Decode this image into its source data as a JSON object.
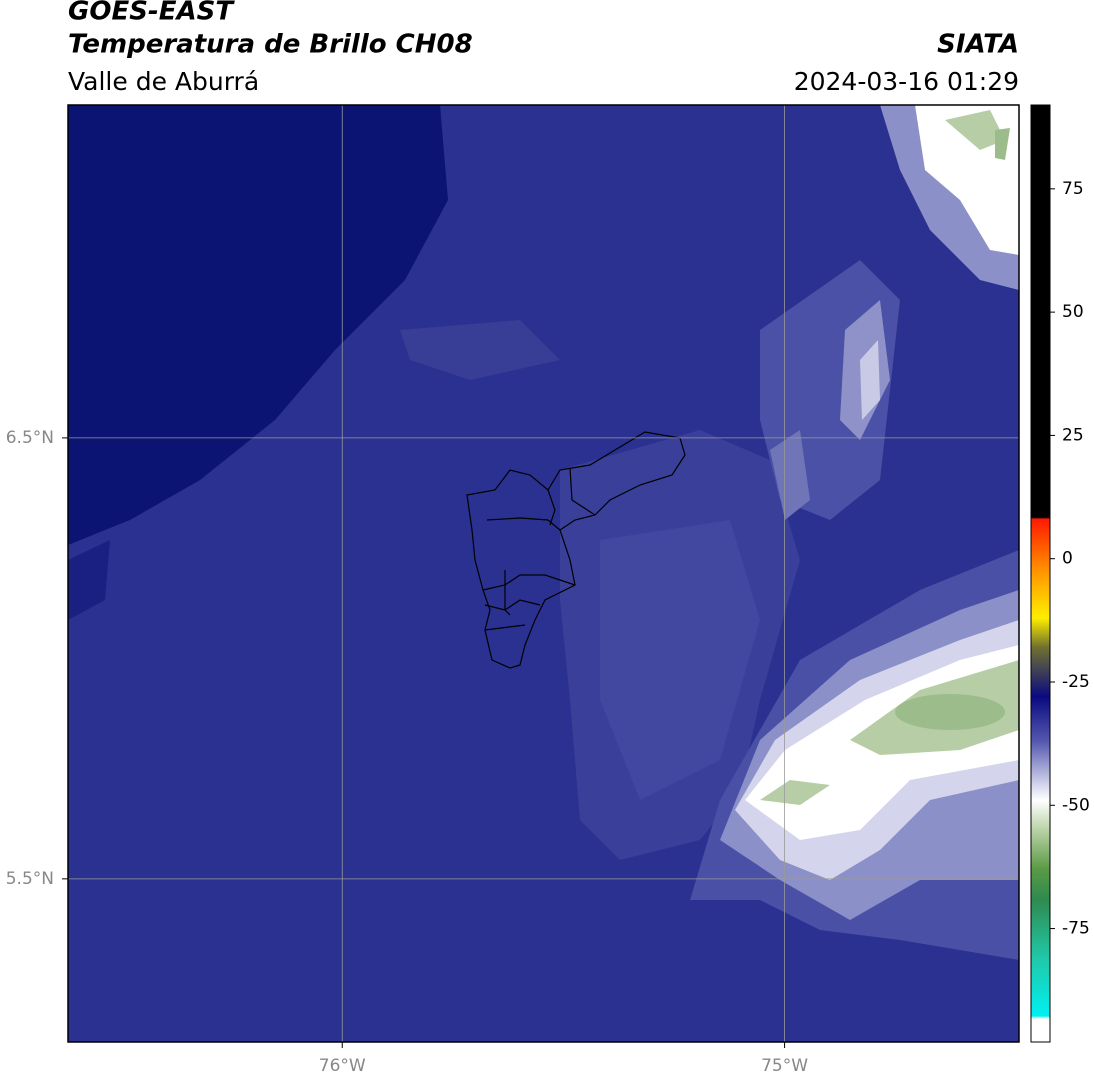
{
  "chart_data": {
    "type": "map",
    "title": "GOES-EAST",
    "subtitle": "Temperatura de Brillo CH08",
    "region": "Valle de Aburrá",
    "source": "SIATA",
    "timestamp": "2024-03-16 01:29",
    "xlim": [
      -76.62,
      -74.47
    ],
    "ylim": [
      5.13,
      7.255
    ],
    "xticks": [
      {
        "value": -76,
        "label": "76°W"
      },
      {
        "value": -75,
        "label": "75°W"
      }
    ],
    "yticks": [
      {
        "value": 6.5,
        "label": "6.5°N"
      },
      {
        "value": 5.5,
        "label": "5.5°N"
      }
    ],
    "grid": true,
    "colorbar": {
      "lim": [
        -98,
        92
      ],
      "ticks": [
        75,
        50,
        25,
        0,
        -25,
        -50,
        -75
      ],
      "colormap": [
        {
          "value": 92,
          "color": "#000000"
        },
        {
          "value": 8.4,
          "color": "#000000"
        },
        {
          "value": 8,
          "color": "#ff1a00"
        },
        {
          "value": -3,
          "color": "#ff9900"
        },
        {
          "value": -12,
          "color": "#ffee00"
        },
        {
          "value": -18,
          "color": "#707030"
        },
        {
          "value": -28,
          "color": "#0a0a80"
        },
        {
          "value": -37,
          "color": "#5458ae"
        },
        {
          "value": -45,
          "color": "#c8c9e6"
        },
        {
          "value": -49,
          "color": "#ffffff"
        },
        {
          "value": -55,
          "color": "#b9d2a6"
        },
        {
          "value": -63,
          "color": "#5a9a46"
        },
        {
          "value": -69,
          "color": "#2f8a4e"
        },
        {
          "value": -81,
          "color": "#20c8a8"
        },
        {
          "value": -92.7,
          "color": "#00f0f0"
        },
        {
          "value": -93.3,
          "color": "#ffffff"
        },
        {
          "value": -98,
          "color": "#ffffff"
        }
      ]
    }
  }
}
